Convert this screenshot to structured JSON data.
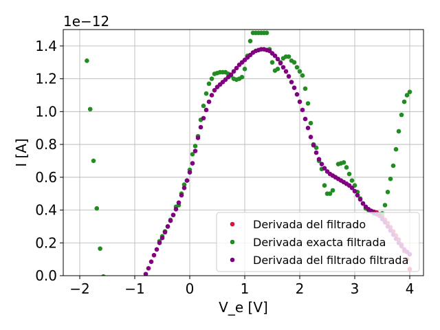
{
  "chart_data": {
    "type": "scatter",
    "title": "",
    "xlabel": "V_e [V]",
    "ylabel": "I [A]",
    "y_offset_label": "1e−12",
    "xlim": [
      -2.3,
      4.25
    ],
    "ylim": [
      0.0,
      1.5
    ],
    "xticks": [
      -2,
      -1,
      0,
      1,
      2,
      3,
      4
    ],
    "xtick_labels": [
      "−2",
      "−1",
      "0",
      "1",
      "2",
      "3",
      "4"
    ],
    "yticks": [
      0.0,
      0.2,
      0.4,
      0.6,
      0.8,
      1.0,
      1.2,
      1.4
    ],
    "ytick_labels": [
      "0.0",
      "0.2",
      "0.4",
      "0.6",
      "0.8",
      "1.0",
      "1.2",
      "1.4"
    ],
    "grid": true,
    "legend_position": "lower-right",
    "series": [
      {
        "name": "Derivada del filtrado",
        "color": "#dc143c",
        "x": [
          3.35,
          3.4,
          3.45,
          3.5,
          3.55,
          3.6,
          3.65,
          3.7,
          3.75,
          3.8,
          3.85,
          3.9,
          3.95,
          4.0
        ],
        "y": [
          0.39,
          0.385,
          0.375,
          0.36,
          0.34,
          0.32,
          0.295,
          0.27,
          0.245,
          0.22,
          0.19,
          0.15,
          0.1,
          0.04
        ]
      },
      {
        "name": "Derivada exacta filtrada",
        "color": "#228b22",
        "x": [
          -1.87,
          -1.81,
          -1.75,
          -1.69,
          -1.63,
          -1.57,
          -0.55,
          -0.5,
          -0.45,
          -0.4,
          -0.35,
          -0.3,
          -0.25,
          -0.2,
          -0.15,
          -0.1,
          -0.05,
          0.0,
          0.05,
          0.1,
          0.15,
          0.2,
          0.25,
          0.3,
          0.35,
          0.4,
          0.45,
          0.5,
          0.55,
          0.6,
          0.65,
          0.7,
          0.75,
          0.8,
          0.85,
          0.9,
          0.95,
          1.0,
          1.05,
          1.1,
          1.15,
          1.2,
          1.25,
          1.3,
          1.35,
          1.4,
          1.45,
          1.5,
          1.55,
          1.6,
          1.65,
          1.7,
          1.75,
          1.8,
          1.85,
          1.9,
          1.95,
          2.0,
          2.05,
          2.1,
          2.15,
          2.2,
          2.25,
          2.3,
          2.35,
          2.4,
          2.45,
          2.5,
          2.55,
          2.6,
          2.65,
          2.7,
          2.75,
          2.8,
          2.85,
          2.9,
          2.95,
          3.0,
          3.05,
          3.1,
          3.15,
          3.2,
          3.25,
          3.3,
          3.35,
          3.4,
          3.45,
          3.5,
          3.55,
          3.6,
          3.65,
          3.7,
          3.75,
          3.8,
          3.85,
          3.9,
          3.95,
          4.0
        ],
        "y": [
          1.31,
          1.015,
          0.7,
          0.41,
          0.165,
          -0.005,
          0.21,
          0.24,
          0.27,
          0.3,
          0.34,
          0.37,
          0.42,
          0.43,
          0.5,
          0.555,
          0.58,
          0.645,
          0.74,
          0.79,
          0.85,
          0.95,
          1.035,
          1.11,
          1.17,
          1.2,
          1.23,
          1.235,
          1.24,
          1.24,
          1.24,
          1.23,
          1.22,
          1.2,
          1.195,
          1.2,
          1.21,
          1.26,
          1.34,
          1.43,
          1.48,
          1.48,
          1.48,
          1.48,
          1.48,
          1.48,
          1.38,
          1.3,
          1.25,
          1.26,
          1.3,
          1.325,
          1.335,
          1.335,
          1.31,
          1.3,
          1.27,
          1.245,
          1.22,
          1.14,
          1.05,
          0.93,
          0.8,
          0.78,
          0.7,
          0.65,
          0.55,
          0.5,
          0.5,
          0.52,
          0.6,
          0.68,
          0.685,
          0.69,
          0.66,
          0.62,
          0.58,
          0.55,
          0.51,
          0.47,
          0.44,
          0.41,
          0.4,
          0.39,
          0.38,
          0.375,
          0.37,
          0.38,
          0.43,
          0.51,
          0.59,
          0.67,
          0.77,
          0.88,
          0.98,
          1.06,
          1.1,
          1.12
        ]
      },
      {
        "name": "Derivada del filtrado filtrada",
        "color": "#800080",
        "x": [
          -0.8,
          -0.75,
          -0.7,
          -0.65,
          -0.6,
          -0.55,
          -0.5,
          -0.45,
          -0.4,
          -0.35,
          -0.3,
          -0.25,
          -0.2,
          -0.15,
          -0.1,
          -0.05,
          0.0,
          0.05,
          0.1,
          0.15,
          0.2,
          0.25,
          0.3,
          0.35,
          0.4,
          0.45,
          0.5,
          0.55,
          0.6,
          0.65,
          0.7,
          0.75,
          0.8,
          0.85,
          0.9,
          0.95,
          1.0,
          1.05,
          1.1,
          1.15,
          1.2,
          1.25,
          1.3,
          1.35,
          1.4,
          1.45,
          1.5,
          1.55,
          1.6,
          1.65,
          1.7,
          1.75,
          1.8,
          1.85,
          1.9,
          1.95,
          2.0,
          2.05,
          2.1,
          2.15,
          2.2,
          2.25,
          2.3,
          2.35,
          2.4,
          2.45,
          2.5,
          2.55,
          2.6,
          2.65,
          2.7,
          2.75,
          2.8,
          2.85,
          2.9,
          2.95,
          3.0,
          3.05,
          3.1,
          3.15,
          3.2,
          3.25,
          3.3,
          3.35,
          3.4,
          3.45,
          3.5,
          3.55,
          3.6,
          3.65,
          3.7,
          3.75,
          3.8,
          3.85,
          3.9,
          3.95,
          4.0
        ],
        "y": [
          0.01,
          0.045,
          0.085,
          0.125,
          0.16,
          0.2,
          0.23,
          0.265,
          0.3,
          0.335,
          0.37,
          0.405,
          0.445,
          0.49,
          0.535,
          0.58,
          0.63,
          0.685,
          0.76,
          0.84,
          0.905,
          0.96,
          1.01,
          1.06,
          1.1,
          1.13,
          1.15,
          1.165,
          1.18,
          1.195,
          1.21,
          1.225,
          1.245,
          1.265,
          1.285,
          1.3,
          1.315,
          1.33,
          1.345,
          1.36,
          1.37,
          1.375,
          1.38,
          1.38,
          1.375,
          1.37,
          1.355,
          1.34,
          1.32,
          1.295,
          1.27,
          1.245,
          1.215,
          1.18,
          1.145,
          1.105,
          1.06,
          1.01,
          0.955,
          0.9,
          0.845,
          0.795,
          0.75,
          0.71,
          0.68,
          0.655,
          0.635,
          0.62,
          0.61,
          0.6,
          0.59,
          0.58,
          0.57,
          0.56,
          0.55,
          0.535,
          0.515,
          0.49,
          0.465,
          0.44,
          0.42,
          0.405,
          0.395,
          0.385,
          0.375,
          0.365,
          0.345,
          0.325,
          0.3,
          0.275,
          0.25,
          0.225,
          0.2,
          0.18,
          0.16,
          0.145,
          0.13
        ]
      }
    ]
  }
}
